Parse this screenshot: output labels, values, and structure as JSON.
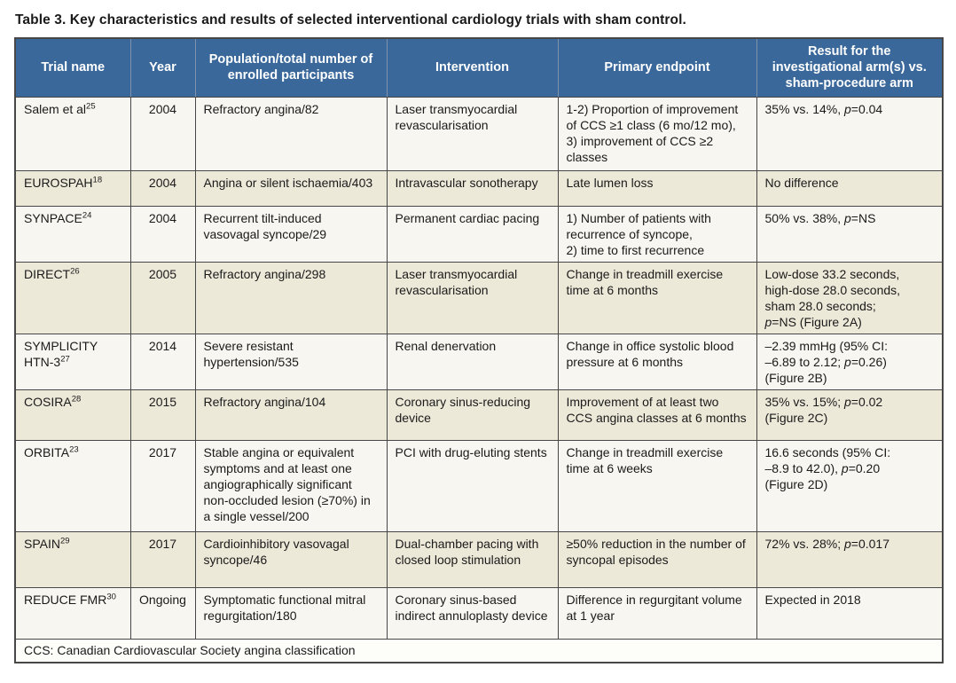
{
  "page": {
    "title": "Table 3. Key characteristics and results of selected interventional cardiology trials with sham control."
  },
  "colors": {
    "header_bg": "#3A689B",
    "header_separator": "#7E91AD",
    "grid": "#474747",
    "row_bg": "#F8F6F0",
    "row_alt_bg": "#EDE9D9",
    "footnote_bg": "#FDFDFA",
    "header_text": "#FFFFFF",
    "body_text": "#1A1A1A"
  },
  "table": {
    "columns": [
      {
        "label": "Trial name"
      },
      {
        "label": "Year"
      },
      {
        "label": "Population/total number of enrolled participants"
      },
      {
        "label": "Intervention"
      },
      {
        "label": "Primary endpoint"
      },
      {
        "label": "Result for the investigational arm(s) vs. sham-procedure arm"
      }
    ],
    "rows": [
      {
        "trial": "Salem et al",
        "ref": "25",
        "year": "2004",
        "population": "Refractory angina/82",
        "intervention": "Laser transmyocardial revascularisation",
        "endpoint": "1-2) Proportion of improvement of CCS ≥1 class (6 mo/12 mo), 3) improvement of CCS ≥2 classes",
        "result": "35% vs. 14%, p=0.04"
      },
      {
        "trial": "EUROSPAH",
        "ref": "18",
        "year": "2004",
        "population": "Angina or silent ischaemia/403",
        "intervention": "Intravascular sonotherapy",
        "endpoint": "Late lumen loss",
        "result": "No difference"
      },
      {
        "trial": "SYNPACE",
        "ref": "24",
        "year": "2004",
        "population": "Recurrent tilt-induced vasovagal syncope/29",
        "intervention": "Permanent cardiac pacing",
        "endpoint": "1) Number of patients with recurrence of syncope,\n2) time to first recurrence",
        "result": "50% vs. 38%, p=NS"
      },
      {
        "trial": "DIRECT",
        "ref": "26",
        "year": "2005",
        "population": "Refractory angina/298",
        "intervention": "Laser transmyocardial revascularisation",
        "endpoint": "Change in treadmill exercise time at 6 months",
        "result": "Low-dose 33.2 seconds,\nhigh-dose 28.0 seconds,\nsham 28.0 seconds;\np=NS (Figure 2A)"
      },
      {
        "trial": "SYMPLICITY HTN-3",
        "ref": "27",
        "year": "2014",
        "population": "Severe resistant hypertension/535",
        "intervention": "Renal denervation",
        "endpoint": "Change in office systolic blood pressure at 6 months",
        "result": "–2.39 mmHg (95% CI:\n–6.89 to 2.12; p=0.26)\n(Figure 2B)"
      },
      {
        "trial": "COSIRA",
        "ref": "28",
        "year": "2015",
        "population": "Refractory angina/104",
        "intervention": "Coronary sinus-reducing device",
        "endpoint": "Improvement of at least two CCS angina classes at 6 months",
        "result": "35% vs. 15%; p=0.02\n(Figure 2C)"
      },
      {
        "trial": "ORBITA",
        "ref": "23",
        "year": "2017",
        "population": "Stable angina or equivalent symptoms and at least one angiographically significant non-occluded lesion (≥70%) in a single vessel/200",
        "intervention": "PCI with drug-eluting stents",
        "endpoint": "Change in treadmill exercise time at 6 weeks",
        "result": "16.6 seconds (95% CI:\n–8.9 to 42.0), p=0.20\n(Figure 2D)"
      },
      {
        "trial": "SPAIN",
        "ref": "29",
        "year": "2017",
        "population": "Cardioinhibitory vasovagal syncope/46",
        "intervention": "Dual-chamber pacing with closed loop stimulation",
        "endpoint": "≥50% reduction in the number of syncopal episodes",
        "result": "72% vs. 28%; p=0.017"
      },
      {
        "trial": "REDUCE FMR",
        "ref": "30",
        "year": "Ongoing",
        "population": "Symptomatic functional mitral regurgitation/180",
        "intervention": "Coronary sinus-based indirect annuloplasty device",
        "endpoint": "Difference in regurgitant volume at 1 year",
        "result": "Expected in 2018"
      }
    ],
    "footnote": "CCS: Canadian Cardiovascular Society angina classification"
  }
}
